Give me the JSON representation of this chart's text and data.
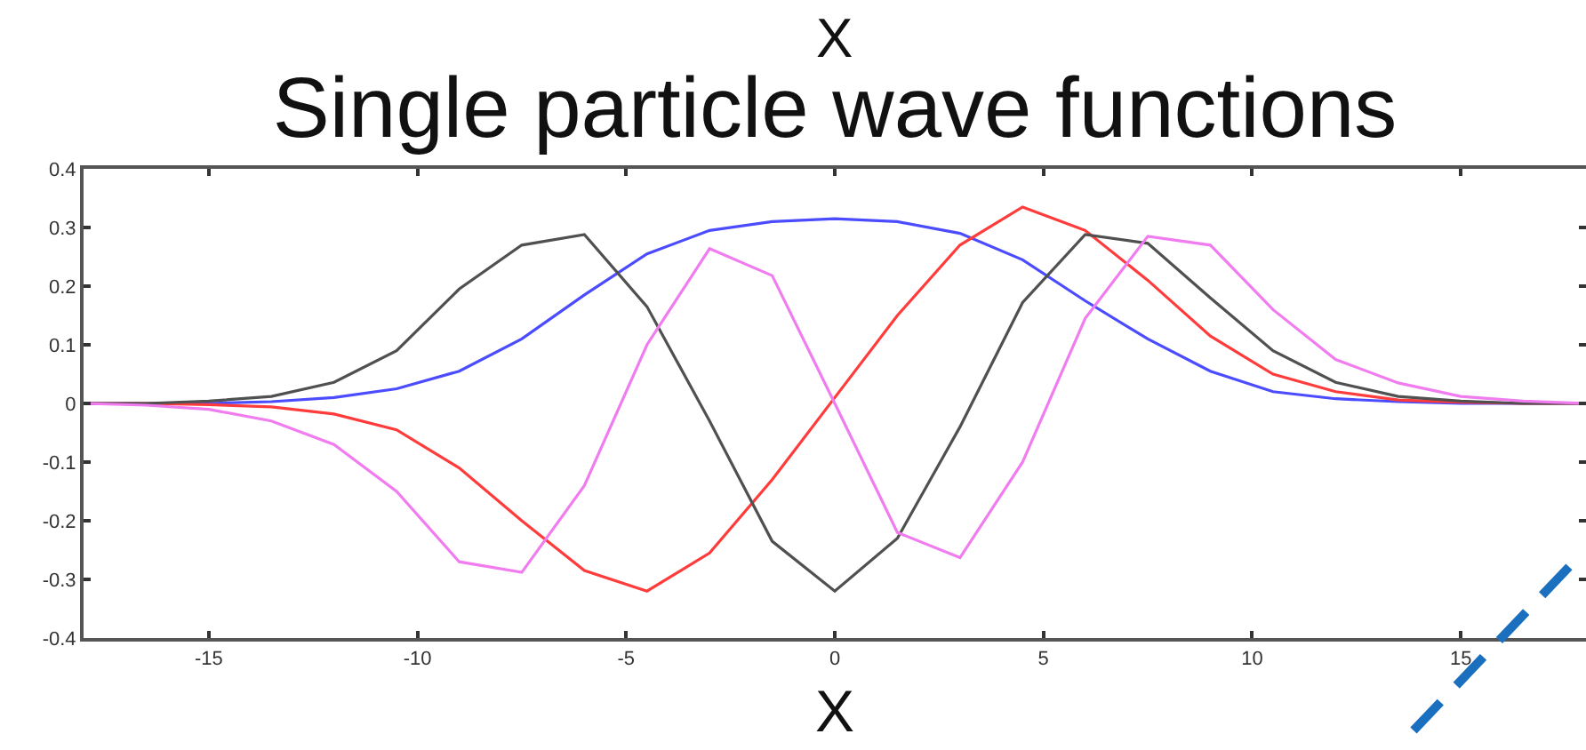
{
  "chart_data": {
    "type": "line",
    "title": "Single particle wave functions",
    "xlabel": "X",
    "annotations": [
      "X"
    ],
    "x": [
      -18,
      -16.5,
      -15,
      -13.5,
      -12,
      -10.5,
      -9,
      -7.5,
      -6,
      -4.5,
      -3,
      -1.5,
      0,
      1.5,
      3,
      4.5,
      6,
      7.5,
      9,
      10.5,
      12,
      13.5,
      15,
      16.5,
      18
    ],
    "series": [
      {
        "color": "#4b4bff",
        "values": [
          0,
          0,
          0,
          0.003,
          0.01,
          0.025,
          0.055,
          0.11,
          0.185,
          0.255,
          0.295,
          0.31,
          0.315,
          0.31,
          0.29,
          0.245,
          0.175,
          0.11,
          0.055,
          0.02,
          0.008,
          0.003,
          0,
          0,
          0
        ]
      },
      {
        "color": "#ff3b3b",
        "values": [
          0,
          0,
          -0.002,
          -0.006,
          -0.018,
          -0.045,
          -0.11,
          -0.2,
          -0.285,
          -0.32,
          -0.255,
          -0.13,
          0.01,
          0.15,
          0.27,
          0.335,
          0.295,
          0.21,
          0.115,
          0.05,
          0.02,
          0.006,
          0.002,
          0,
          0
        ]
      },
      {
        "color": "#505050",
        "values": [
          0,
          0,
          0.004,
          0.012,
          0.036,
          0.09,
          0.195,
          0.27,
          0.288,
          0.165,
          -0.03,
          -0.235,
          -0.32,
          -0.23,
          -0.04,
          0.172,
          0.288,
          0.273,
          0.18,
          0.09,
          0.036,
          0.012,
          0.004,
          0,
          0
        ]
      },
      {
        "color": "#f07cf0",
        "values": [
          0,
          -0.003,
          -0.01,
          -0.03,
          -0.07,
          -0.15,
          -0.27,
          -0.288,
          -0.14,
          0.1,
          0.264,
          0.218,
          0,
          -0.22,
          -0.263,
          -0.1,
          0.145,
          0.285,
          0.27,
          0.16,
          0.075,
          0.035,
          0.012,
          0.004,
          0
        ]
      }
    ],
    "xlim": [
      -18,
      18
    ],
    "xticks": [
      -15,
      -10,
      -5,
      0,
      5,
      10,
      15
    ],
    "ylim": [
      -0.4,
      0.4
    ],
    "yticks": [
      -0.4,
      -0.3,
      -0.2,
      -0.1,
      0,
      0.1,
      0.2,
      0.3,
      0.4
    ],
    "grid": false,
    "marker": "none",
    "line_style": "solid"
  }
}
